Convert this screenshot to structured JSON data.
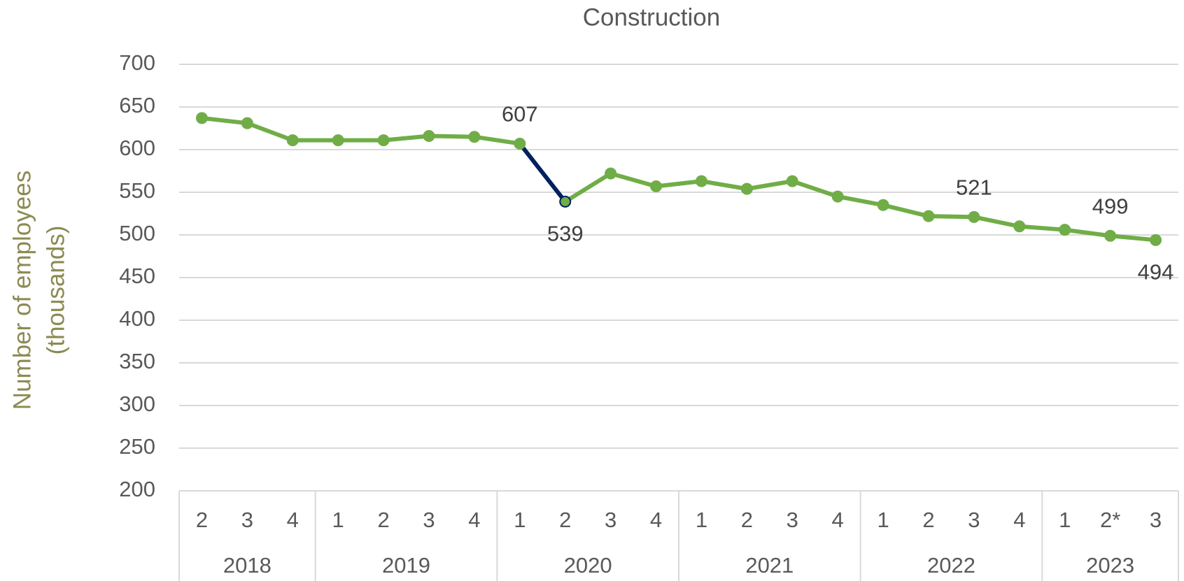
{
  "chart_data": {
    "type": "line",
    "title": "Construction",
    "y_label": [
      "Number of employees",
      "(thousands)"
    ],
    "categories": [
      "2",
      "3",
      "4",
      "1",
      "2",
      "3",
      "4",
      "1",
      "2",
      "3",
      "4",
      "1",
      "2",
      "3",
      "4",
      "1",
      "2",
      "3",
      "4",
      "1",
      "2*",
      "3"
    ],
    "groups": [
      {
        "label": "2018",
        "span": 3
      },
      {
        "label": "2019",
        "span": 4
      },
      {
        "label": "2020",
        "span": 4
      },
      {
        "label": "2021",
        "span": 4
      },
      {
        "label": "2022",
        "span": 4
      },
      {
        "label": "2023",
        "span": 3
      }
    ],
    "series": [
      {
        "name": "Construction",
        "color": "#70ad47",
        "values": [
          637,
          631,
          611,
          611,
          611,
          616,
          615,
          607,
          539,
          572,
          557,
          563,
          554,
          563,
          545,
          535,
          522,
          521,
          510,
          506,
          499,
          494
        ],
        "value_labels": [
          null,
          null,
          null,
          null,
          null,
          null,
          null,
          "607",
          "539",
          null,
          null,
          null,
          null,
          null,
          null,
          null,
          null,
          "521",
          null,
          null,
          "499",
          "494"
        ],
        "value_label_positions": [
          null,
          null,
          null,
          null,
          null,
          null,
          null,
          "above",
          "below",
          null,
          null,
          null,
          null,
          null,
          null,
          null,
          null,
          "above",
          null,
          null,
          "above",
          "below"
        ],
        "segment_colors": [
          "#70ad47",
          "#70ad47",
          "#70ad47",
          "#70ad47",
          "#70ad47",
          "#70ad47",
          "#70ad47",
          "#002060",
          "#70ad47",
          "#70ad47",
          "#70ad47",
          "#70ad47",
          "#70ad47",
          "#70ad47",
          "#70ad47",
          "#70ad47",
          "#70ad47",
          "#70ad47",
          "#70ad47",
          "#70ad47",
          "#70ad47"
        ],
        "marker_edge_colors": [
          "#70ad47",
          "#70ad47",
          "#70ad47",
          "#70ad47",
          "#70ad47",
          "#70ad47",
          "#70ad47",
          "#70ad47",
          "#002060",
          "#70ad47",
          "#70ad47",
          "#70ad47",
          "#70ad47",
          "#70ad47",
          "#70ad47",
          "#70ad47",
          "#70ad47",
          "#70ad47",
          "#70ad47",
          "#70ad47",
          "#70ad47",
          "#70ad47"
        ]
      }
    ],
    "ylim": [
      200,
      700
    ],
    "yticks": [
      200,
      250,
      300,
      350,
      400,
      450,
      500,
      550,
      600,
      650,
      700
    ],
    "grid": true
  }
}
